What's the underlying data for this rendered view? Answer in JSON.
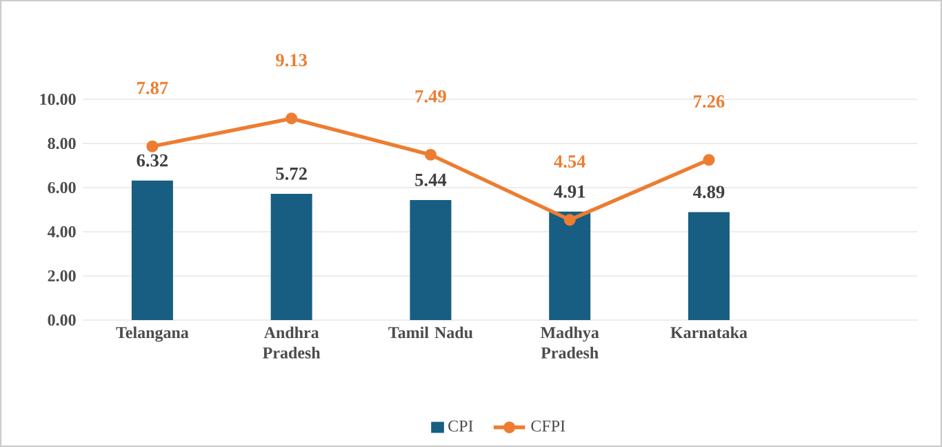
{
  "chart_data": {
    "type": "bar",
    "categories": [
      "Telangana",
      "Andhra Pradesh",
      "Tamil Nadu",
      "Madhya Pradesh",
      "Karnataka",
      null
    ],
    "series": [
      {
        "name": "CPI",
        "color": "#175e82",
        "values": [
          6.32,
          5.72,
          5.44,
          4.91,
          4.89,
          null
        ]
      },
      {
        "name": "CFPI",
        "type": "line",
        "color": "#ed7d31",
        "marker": "circle",
        "values": [
          7.87,
          9.13,
          7.49,
          4.54,
          7.26,
          null
        ]
      }
    ],
    "ylim": [
      0,
      10
    ],
    "yticks": [
      {
        "value": 0,
        "label": "0.00"
      },
      {
        "value": 2,
        "label": "2.00"
      },
      {
        "value": 4,
        "label": "4.00"
      },
      {
        "value": 6,
        "label": "6.00"
      },
      {
        "value": 8,
        "label": "8.00"
      },
      {
        "value": 10,
        "label": "10.00"
      }
    ],
    "grid": "y",
    "legend": "bottom",
    "data_labels": true
  }
}
